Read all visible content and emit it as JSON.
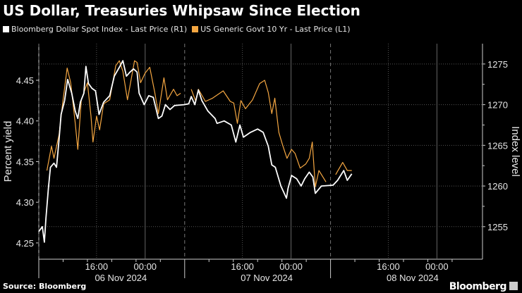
{
  "chart_data": {
    "type": "line",
    "title": "US Dollar, Treasuries Whipsaw Since Election",
    "ylabel_left": "Percent yield",
    "ylabel_right": "Index level",
    "ylim_left": [
      4.23,
      4.495
    ],
    "ylim_right": [
      1251,
      1277.5
    ],
    "yticks_left": [
      "4.25",
      "4.30",
      "4.35",
      "4.40",
      "4.45"
    ],
    "yticks_right": [
      "1255",
      "1260",
      "1265",
      "1270",
      "1275"
    ],
    "xlim": [
      "2024-11-06T06:30",
      "2024-11-09T07:30"
    ],
    "xticks": [
      {
        "time": "16:00",
        "date": "06 Nov 2024"
      },
      {
        "time": "00:00",
        "date": ""
      },
      {
        "time": "16:00",
        "date": "07 Nov 2024"
      },
      {
        "time": "00:00",
        "date": ""
      },
      {
        "time": "16:00",
        "date": "08 Nov 2024"
      },
      {
        "time": "00:00",
        "date": ""
      }
    ],
    "grid": true,
    "legend_position": "top-left",
    "series": [
      {
        "name": "Bloomberg Dollar Spot Index - Last Price (R1)",
        "axis": "right",
        "color": "#ffffff",
        "points": [
          [
            "2024-11-06T06:30",
            1254.4
          ],
          [
            "2024-11-06T07:05",
            1255.0
          ],
          [
            "2024-11-06T07:25",
            1253.1
          ],
          [
            "2024-11-06T07:40",
            1256.0
          ],
          [
            "2024-11-06T08:05",
            1259.7
          ],
          [
            "2024-11-06T08:25",
            1262.3
          ],
          [
            "2024-11-06T09:00",
            1262.8
          ],
          [
            "2024-11-06T09:25",
            1262.3
          ],
          [
            "2024-11-06T09:50",
            1265.7
          ],
          [
            "2024-11-06T10:10",
            1268.8
          ],
          [
            "2024-11-06T10:45",
            1270.5
          ],
          [
            "2024-11-06T11:15",
            1273.1
          ],
          [
            "2024-11-06T11:55",
            1271.4
          ],
          [
            "2024-11-06T12:30",
            1269.2
          ],
          [
            "2024-11-06T12:55",
            1268.3
          ],
          [
            "2024-11-06T13:20",
            1270.3
          ],
          [
            "2024-11-06T13:55",
            1271.4
          ],
          [
            "2024-11-06T14:15",
            1274.7
          ],
          [
            "2024-11-06T14:40",
            1272.6
          ],
          [
            "2024-11-06T15:15",
            1272.0
          ],
          [
            "2024-11-06T15:50",
            1271.7
          ],
          [
            "2024-11-06T16:25",
            1268.8
          ],
          [
            "2024-11-06T17:10",
            1270.3
          ],
          [
            "2024-11-06T18:10",
            1271.1
          ],
          [
            "2024-11-06T18:55",
            1273.5
          ],
          [
            "2024-11-06T19:45",
            1274.6
          ],
          [
            "2024-11-06T20:20",
            1275.4
          ],
          [
            "2024-11-06T20:55",
            1273.5
          ],
          [
            "2024-11-06T21:30",
            1274.0
          ],
          [
            "2024-11-06T22:05",
            1274.4
          ],
          [
            "2024-11-06T22:40",
            1274.0
          ],
          [
            "2024-11-06T23:00",
            1271.4
          ],
          [
            "2024-11-06T23:50",
            1270.0
          ],
          [
            "2024-11-07T00:35",
            1271.1
          ],
          [
            "2024-11-07T01:20",
            1270.9
          ],
          [
            "2024-11-07T02:10",
            1268.3
          ],
          [
            "2024-11-07T02:45",
            1268.6
          ],
          [
            "2024-11-07T03:20",
            1270.0
          ],
          [
            "2024-11-07T04:05",
            1269.4
          ],
          [
            "2024-11-07T04:50",
            1269.9
          ],
          [
            "2024-11-07T06:25",
            1270.0
          ],
          [
            "2024-11-07T07:10",
            1270.1
          ],
          [
            "2024-11-07T07:35",
            1271.0
          ],
          [
            "2024-11-07T08:10",
            1270.0
          ],
          [
            "2024-11-07T08:45",
            1271.8
          ],
          [
            "2024-11-07T09:20",
            1270.5
          ],
          [
            "2024-11-07T10:20",
            1269.2
          ],
          [
            "2024-11-07T11:30",
            1268.3
          ],
          [
            "2024-11-07T11:50",
            1267.7
          ],
          [
            "2024-11-07T13:00",
            1268.0
          ],
          [
            "2024-11-07T14:10",
            1267.5
          ],
          [
            "2024-11-07T14:55",
            1265.4
          ],
          [
            "2024-11-07T15:35",
            1267.5
          ],
          [
            "2024-11-07T16:10",
            1266.0
          ],
          [
            "2024-11-07T17:20",
            1266.6
          ],
          [
            "2024-11-07T18:30",
            1267.0
          ],
          [
            "2024-11-07T19:25",
            1266.6
          ],
          [
            "2024-11-07T20:15",
            1264.9
          ],
          [
            "2024-11-07T20:50",
            1262.6
          ],
          [
            "2024-11-07T21:25",
            1262.3
          ],
          [
            "2024-11-07T22:20",
            1260.0
          ],
          [
            "2024-11-07T23:15",
            1258.5
          ],
          [
            "2024-11-07T23:30",
            1259.7
          ],
          [
            "2024-11-08T00:05",
            1261.3
          ],
          [
            "2024-11-08T00:55",
            1260.9
          ],
          [
            "2024-11-08T01:40",
            1260.0
          ],
          [
            "2024-11-08T02:15",
            1260.9
          ],
          [
            "2024-11-08T03:00",
            1261.7
          ],
          [
            "2024-11-08T03:35",
            1261.1
          ],
          [
            "2024-11-08T04:00",
            1259.1
          ],
          [
            "2024-11-08T05:00",
            1260.0
          ],
          [
            "2024-11-08T06:55",
            1260.1
          ],
          [
            "2024-11-08T07:40",
            1260.7
          ],
          [
            "2024-11-08T08:40",
            1261.9
          ],
          [
            "2024-11-08T09:15",
            1260.7
          ],
          [
            "2024-11-08T10:00",
            1261.5
          ]
        ]
      },
      {
        "name": "US Generic Govt 10 Yr - Last Price (L1)",
        "axis": "left",
        "color": "#f5a742",
        "points": [
          [
            "2024-11-06T07:50",
            4.339
          ],
          [
            "2024-11-06T08:35",
            4.369
          ],
          [
            "2024-11-06T09:00",
            4.354
          ],
          [
            "2024-11-06T09:50",
            4.383
          ],
          [
            "2024-11-06T10:25",
            4.421
          ],
          [
            "2024-11-06T11:10",
            4.465
          ],
          [
            "2024-11-06T11:45",
            4.447
          ],
          [
            "2024-11-06T12:30",
            4.397
          ],
          [
            "2024-11-06T12:55",
            4.365
          ],
          [
            "2024-11-06T13:30",
            4.426
          ],
          [
            "2024-11-06T14:30",
            4.447
          ],
          [
            "2024-11-06T15:05",
            4.406
          ],
          [
            "2024-11-06T15:25",
            4.374
          ],
          [
            "2024-11-06T16:00",
            4.406
          ],
          [
            "2024-11-06T16:30",
            4.389
          ],
          [
            "2024-11-06T17:10",
            4.421
          ],
          [
            "2024-11-06T18:10",
            4.426
          ],
          [
            "2024-11-06T19:10",
            4.468
          ],
          [
            "2024-11-06T19:45",
            4.474
          ],
          [
            "2024-11-06T20:20",
            4.461
          ],
          [
            "2024-11-06T21:05",
            4.426
          ],
          [
            "2024-11-06T21:40",
            4.45
          ],
          [
            "2024-11-06T22:15",
            4.474
          ],
          [
            "2024-11-06T22:40",
            4.472
          ],
          [
            "2024-11-06T23:15",
            4.447
          ],
          [
            "2024-11-07T00:00",
            4.459
          ],
          [
            "2024-11-07T00:45",
            4.466
          ],
          [
            "2024-11-07T01:35",
            4.435
          ],
          [
            "2024-11-07T02:10",
            4.409
          ],
          [
            "2024-11-07T03:05",
            4.453
          ],
          [
            "2024-11-07T03:40",
            4.426
          ],
          [
            "2024-11-07T04:40",
            4.439
          ],
          [
            "2024-11-07T05:15",
            4.431
          ],
          [
            "2024-11-07T05:50",
            4.434
          ],
          null,
          [
            "2024-11-07T07:35",
            4.439
          ],
          [
            "2024-11-07T08:20",
            4.424
          ],
          [
            "2024-11-07T08:45",
            4.439
          ],
          [
            "2024-11-07T09:55",
            4.424
          ],
          [
            "2024-11-07T11:05",
            4.428
          ],
          [
            "2024-11-07T12:50",
            4.437
          ],
          [
            "2024-11-07T14:00",
            4.424
          ],
          [
            "2024-11-07T14:35",
            4.422
          ],
          [
            "2024-11-07T15:10",
            4.397
          ],
          [
            "2024-11-07T15:45",
            4.425
          ],
          [
            "2024-11-07T16:30",
            4.415
          ],
          [
            "2024-11-07T17:40",
            4.426
          ],
          [
            "2024-11-07T18:50",
            4.446
          ],
          [
            "2024-11-07T19:40",
            4.45
          ],
          [
            "2024-11-07T20:15",
            4.435
          ],
          [
            "2024-11-07T20:50",
            4.409
          ],
          [
            "2024-11-07T21:20",
            4.428
          ],
          [
            "2024-11-07T22:00",
            4.386
          ],
          [
            "2024-11-07T22:35",
            4.371
          ],
          [
            "2024-11-07T23:20",
            4.354
          ],
          [
            "2024-11-08T00:05",
            4.365
          ],
          [
            "2024-11-08T00:40",
            4.36
          ],
          [
            "2024-11-08T01:30",
            4.342
          ],
          [
            "2024-11-08T02:25",
            4.347
          ],
          [
            "2024-11-08T03:00",
            4.354
          ],
          [
            "2024-11-08T03:30",
            4.374
          ],
          [
            "2024-11-08T04:00",
            4.319
          ],
          [
            "2024-11-08T04:35",
            4.339
          ],
          [
            "2024-11-08T05:45",
            4.325
          ],
          null,
          [
            "2024-11-08T07:20",
            4.334
          ],
          [
            "2024-11-08T08:30",
            4.349
          ],
          [
            "2024-11-08T09:15",
            4.339
          ],
          [
            "2024-11-08T10:00",
            4.339
          ]
        ]
      }
    ]
  },
  "footer": {
    "source": "Source: Bloomberg",
    "brand": "Bloomberg"
  }
}
